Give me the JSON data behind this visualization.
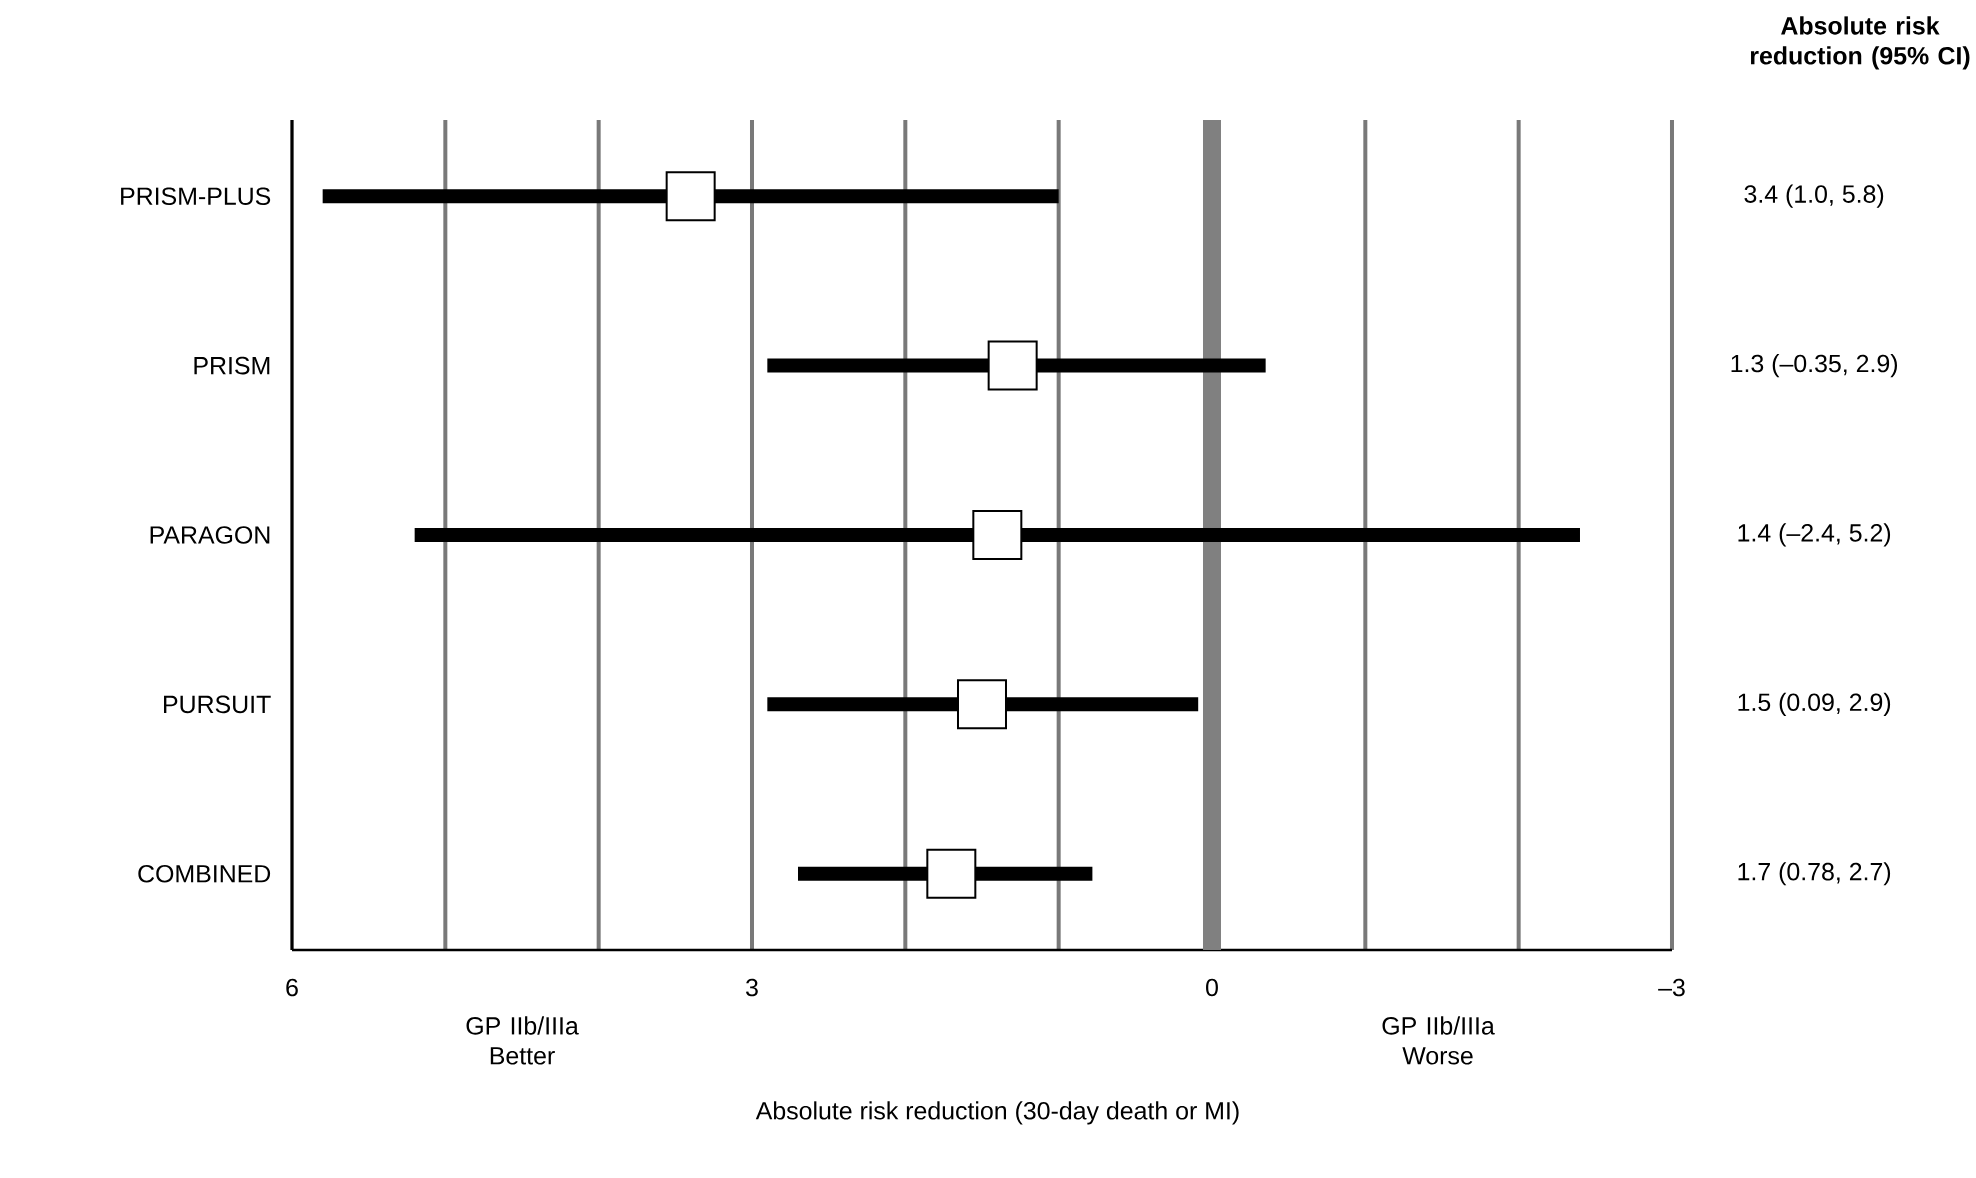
{
  "chart_data": {
    "type": "scatter",
    "orientation": "horizontal",
    "categories": [
      "PRISM-PLUS",
      "PRISM",
      "PARAGON",
      "PURSUIT",
      "COMBINED"
    ],
    "values": [
      3.4,
      1.3,
      1.4,
      1.5,
      1.7
    ],
    "errors": [
      [
        1.0,
        5.8
      ],
      [
        -0.35,
        2.9
      ],
      [
        -2.4,
        5.2
      ],
      [
        0.09,
        2.9
      ],
      [
        0.78,
        2.7
      ]
    ],
    "value_labels": [
      "3.4 (1.0, 5.8)",
      "1.3 (–0.35, 2.9)",
      "1.4 (–2.4, 5.2)",
      "1.5 (0.09, 2.9)",
      "1.7 (0.78, 2.7)"
    ],
    "color": "#ffffff",
    "marker": "square",
    "xlim": [
      6,
      -3
    ],
    "xticks": [
      6,
      {
        "value": 5,
        "label": null
      },
      {
        "value": 4,
        "label": null
      },
      3,
      {
        "value": 2,
        "label": null
      },
      {
        "value": 1,
        "label": null
      },
      0,
      {
        "value": -1,
        "label": null
      },
      {
        "value": -2,
        "label": null
      },
      {
        "value": -3,
        "label": "–3"
      }
    ],
    "grid": "x",
    "ref_lines": [
      {
        "axis": "x",
        "value": 0,
        "color": "#808080"
      }
    ],
    "xlabel": "Absolute risk reduction (30-day death or MI)",
    "annotations": [
      "Absolute risk reduction (95% CI)",
      "GP IIb/IIIa Better",
      "GP IIb/IIIa Worse"
    ]
  }
}
